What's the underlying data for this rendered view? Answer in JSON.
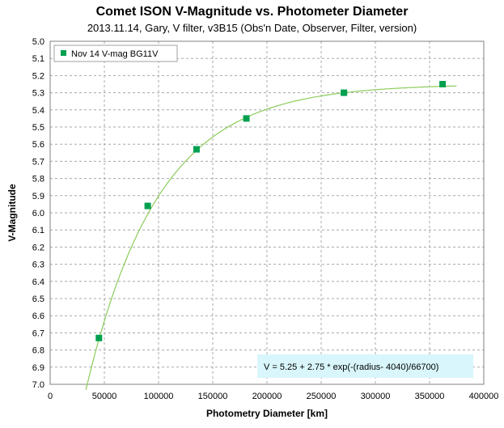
{
  "chart_data": {
    "type": "scatter",
    "title": "Comet ISON V-Magnitude vs. Photometer Diameter",
    "subtitle": "2013.11.14, Gary, V filter, v3B15 (Obs'n Date, Observer, Filter, version)",
    "xlabel": "Photometry Diameter  [km]",
    "ylabel": "V-Magnitude",
    "xlim": [
      0,
      400000
    ],
    "ylim": [
      5.0,
      7.0
    ],
    "y_reversed": true,
    "grid": true,
    "legend_position": "top-left",
    "x_ticks": [
      0,
      50000,
      100000,
      150000,
      200000,
      250000,
      300000,
      350000,
      400000
    ],
    "y_ticks": [
      "5.0",
      "5.1",
      "5.2",
      "5.3",
      "5.4",
      "5.5",
      "5.6",
      "5.7",
      "5.8",
      "5.9",
      "6.0",
      "6.1",
      "6.2",
      "6.3",
      "6.4",
      "6.5",
      "6.6",
      "6.7",
      "6.8",
      "6.9",
      "7.0"
    ],
    "series": [
      {
        "name": "Nov 14 V-mag BG11V",
        "marker": "square",
        "color": "#00a050",
        "x": [
          45000,
          90000,
          135000,
          181000,
          271000,
          362000
        ],
        "y": [
          6.73,
          5.96,
          5.63,
          5.45,
          5.3,
          5.25
        ]
      }
    ],
    "fit": {
      "equation": "V = 5.25 + 2.75 * exp(-(radius- 4040)/66700)",
      "color": "#8ccc5a",
      "base": 5.25,
      "amp": 2.75,
      "offset": 4040,
      "scale": 66700,
      "x_range": [
        33000,
        375000
      ]
    }
  }
}
